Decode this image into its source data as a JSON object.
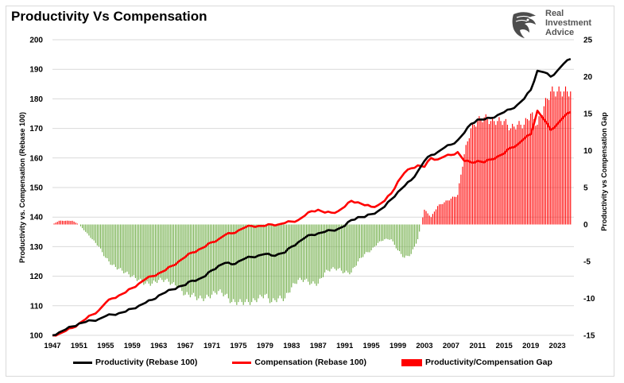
{
  "colors": {
    "productivity": "#000000",
    "compensation": "#ff0000",
    "gap_positive": "#ff0000",
    "gap_negative": "#70ad47",
    "grid": "#d9d9d9"
  },
  "logo": {
    "icon": "eagle-head-icon",
    "line1": "Real",
    "line2": "Investment",
    "line3": "Advice"
  },
  "chart_data": {
    "type": "line",
    "title": "Productivity Vs Compensation",
    "ylabel": "Productivity vs. Compensation (Rebase 100)",
    "y2label": "Productivity vs Compensation Gap",
    "ylim": [
      100,
      200
    ],
    "y2lim": [
      -15,
      25
    ],
    "yticks": [
      "100",
      "110",
      "120",
      "130",
      "140",
      "150",
      "160",
      "170",
      "180",
      "190",
      "200"
    ],
    "y2ticks": [
      "-15",
      "-10",
      "-5",
      "0",
      "5",
      "10",
      "15",
      "20",
      "25"
    ],
    "xticks": [
      "1947",
      "1951",
      "1955",
      "1959",
      "1963",
      "1967",
      "1971",
      "1975",
      "1979",
      "1983",
      "1987",
      "1991",
      "1995",
      "1999",
      "2003",
      "2007",
      "2011",
      "2015",
      "2019",
      "2023"
    ],
    "xlim": [
      1947,
      2025.5
    ],
    "grid": true,
    "legend_position": "bottom",
    "series": [
      {
        "name": "Productivity (Rebase 100)",
        "kind": "line",
        "axis": "left",
        "x": [
          1947,
          1948,
          1949,
          1950,
          1951,
          1952,
          1953,
          1954,
          1955,
          1956,
          1957,
          1958,
          1959,
          1960,
          1961,
          1962,
          1963,
          1964,
          1965,
          1966,
          1967,
          1968,
          1969,
          1970,
          1971,
          1972,
          1973,
          1974,
          1975,
          1976,
          1977,
          1978,
          1979,
          1980,
          1981,
          1982,
          1983,
          1984,
          1985,
          1986,
          1987,
          1988,
          1989,
          1990,
          1991,
          1992,
          1993,
          1994,
          1995,
          1996,
          1997,
          1998,
          1999,
          2000,
          2001,
          2002,
          2003,
          2004,
          2005,
          2006,
          2007,
          2008,
          2009,
          2010,
          2011,
          2012,
          2013,
          2014,
          2015,
          2016,
          2017,
          2018,
          2019,
          2020,
          2021,
          2022,
          2023,
          2024,
          2025
        ],
        "values": [
          100,
          101,
          102,
          103,
          104,
          104.5,
          105,
          105.5,
          106.5,
          107,
          107.5,
          108,
          109,
          110,
          111,
          112,
          113.5,
          114.5,
          115.5,
          116.5,
          117,
          118.5,
          119,
          120,
          122,
          123.5,
          124.5,
          124,
          125,
          126,
          126.5,
          127,
          127.5,
          127,
          127.5,
          128,
          130,
          131.5,
          133,
          134,
          134.5,
          135,
          135.5,
          136,
          137,
          139,
          140,
          140,
          141,
          142,
          143.5,
          146,
          148.5,
          150.5,
          152.5,
          155.5,
          159,
          161,
          162,
          163.5,
          164.5,
          166,
          168.5,
          171.5,
          173,
          173,
          173.5,
          174.5,
          175.5,
          176.5,
          178,
          180,
          183,
          189.5,
          189,
          187.5,
          189.5,
          192,
          193.5
        ]
      },
      {
        "name": "Compensation (Rebase 100)",
        "kind": "line",
        "axis": "left",
        "x": [
          1947,
          1948,
          1949,
          1950,
          1951,
          1952,
          1953,
          1954,
          1955,
          1956,
          1957,
          1958,
          1959,
          1960,
          1961,
          1962,
          1963,
          1964,
          1965,
          1966,
          1967,
          1968,
          1969,
          1970,
          1971,
          1972,
          1973,
          1974,
          1975,
          1976,
          1977,
          1978,
          1979,
          1980,
          1981,
          1982,
          1983,
          1984,
          1985,
          1986,
          1987,
          1988,
          1989,
          1990,
          1991,
          1992,
          1993,
          1994,
          1995,
          1996,
          1997,
          1998,
          1999,
          2000,
          2001,
          2002,
          2003,
          2004,
          2005,
          2006,
          2007,
          2008,
          2009,
          2010,
          2011,
          2012,
          2013,
          2014,
          2015,
          2016,
          2017,
          2018,
          2019,
          2020,
          2021,
          2022,
          2023,
          2024,
          2025
        ],
        "values": [
          100,
          100.5,
          101.5,
          102.5,
          104,
          105.5,
          107,
          108.5,
          111,
          112.5,
          113.5,
          114.5,
          116,
          117.5,
          119,
          120,
          121,
          122,
          123.5,
          125,
          126.5,
          128,
          129,
          130,
          131.5,
          132.5,
          134,
          134.5,
          135.5,
          136.5,
          137,
          137,
          137,
          137.5,
          137.5,
          138,
          138.5,
          139,
          140.5,
          142,
          142.5,
          141.5,
          141.5,
          142,
          143.5,
          145.5,
          145,
          144,
          143.5,
          144,
          145.5,
          148,
          152,
          155,
          156.5,
          157.5,
          157,
          160,
          159.5,
          160.5,
          161,
          162,
          159,
          158.5,
          159,
          158.5,
          159.5,
          160.5,
          161.5,
          163.5,
          164.5,
          166.5,
          168,
          176,
          173,
          169.5,
          171.5,
          174,
          175.5
        ]
      },
      {
        "name": "Productivity/Compensation Gap",
        "kind": "bar",
        "axis": "right",
        "x": [
          1947,
          1948,
          1949,
          1950,
          1951,
          1952,
          1953,
          1954,
          1955,
          1956,
          1957,
          1958,
          1959,
          1960,
          1961,
          1962,
          1963,
          1964,
          1965,
          1966,
          1967,
          1968,
          1969,
          1970,
          1971,
          1972,
          1973,
          1974,
          1975,
          1976,
          1977,
          1978,
          1979,
          1980,
          1981,
          1982,
          1983,
          1984,
          1985,
          1986,
          1987,
          1988,
          1989,
          1990,
          1991,
          1992,
          1993,
          1994,
          1995,
          1996,
          1997,
          1998,
          1999,
          2000,
          2001,
          2002,
          2003,
          2004,
          2005,
          2006,
          2007,
          2008,
          2009,
          2010,
          2011,
          2012,
          2013,
          2014,
          2015,
          2016,
          2017,
          2018,
          2019,
          2020,
          2021,
          2022,
          2023,
          2024,
          2025
        ],
        "values": [
          0,
          0.5,
          0.5,
          0.5,
          0,
          -1,
          -2,
          -3,
          -4.5,
          -5.5,
          -6,
          -6.5,
          -7,
          -7.5,
          -8,
          -8,
          -7.5,
          -7.5,
          -8,
          -8.5,
          -9.5,
          -9.5,
          -10,
          -10,
          -9.5,
          -9,
          -9.5,
          -10.5,
          -10.5,
          -10.5,
          -10.5,
          -10,
          -9.5,
          -10.5,
          -10,
          -10,
          -8.5,
          -7.5,
          -7.5,
          -8,
          -8,
          -6.5,
          -6,
          -6,
          -6.5,
          -6.5,
          -5,
          -4,
          -3.5,
          -2.5,
          -2,
          -2,
          -3.5,
          -4.5,
          -4,
          -2,
          2,
          1,
          2.5,
          3,
          3.5,
          4,
          9.5,
          13,
          14,
          14.5,
          14,
          14,
          14,
          13,
          13.5,
          13.5,
          15,
          13.5,
          16,
          18,
          18,
          18,
          18
        ]
      }
    ]
  }
}
